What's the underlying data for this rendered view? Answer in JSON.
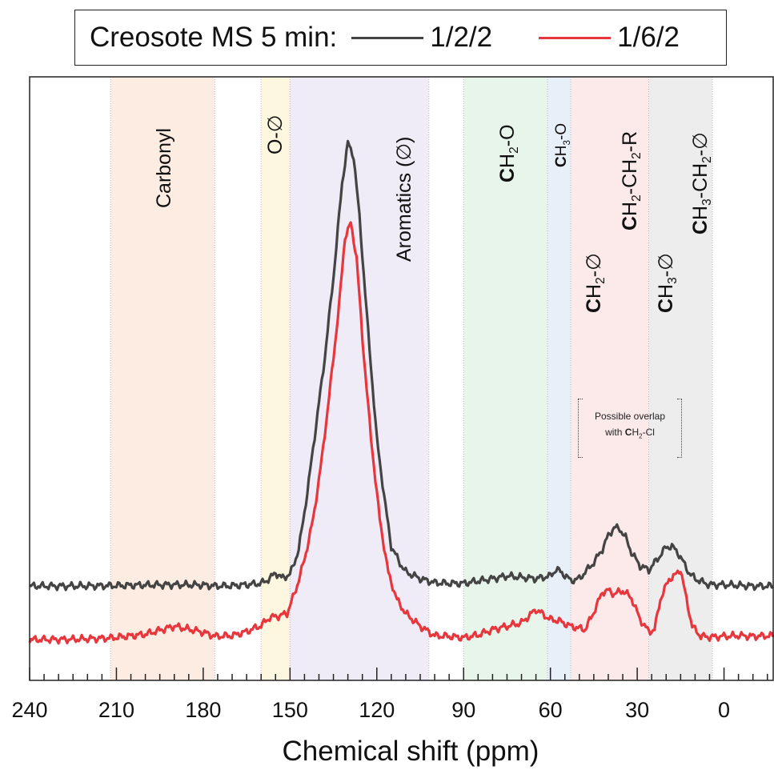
{
  "legend": {
    "title": "Creosote MS 5 min:",
    "items": [
      {
        "label": "1/2/2",
        "color": "#444444"
      },
      {
        "label": "1/6/2",
        "color": "#e8363d"
      }
    ]
  },
  "regions": [
    {
      "label": "Carbonyl",
      "from": 212,
      "to": 176,
      "color": "#fde9dc"
    },
    {
      "label": "O-∅",
      "from": 160,
      "to": 150,
      "color": "#fdf6da"
    },
    {
      "label": "Aromatics (∅)",
      "from": 150,
      "to": 102,
      "color": "#ece8f6"
    },
    {
      "label": "CH2-O",
      "from": 90,
      "to": 61,
      "color": "#e4f3e7"
    },
    {
      "label": "CH3-O",
      "from": 61,
      "to": 53,
      "color": "#e3ecf8"
    },
    {
      "label": "CH2-CH2-R / CH2-∅",
      "from": 53,
      "to": 26,
      "color": "#fce5e5"
    },
    {
      "label": "CH3-CH2-∅ / CH3-∅",
      "from": 26,
      "to": 4,
      "color": "#eaeaea"
    }
  ],
  "annotation": {
    "line1": "Possible overlap",
    "line2_prefix": "with ",
    "line2_bold": "C",
    "line2_rest": "H",
    "line2_sub": "2",
    "line2_end": "-Cl"
  },
  "chart_data": {
    "type": "line",
    "xlabel": "Chemical shift (ppm)",
    "ylabel": "",
    "xlim": [
      240,
      -17
    ],
    "x_reversed": true,
    "ticks": [
      240,
      210,
      180,
      150,
      120,
      90,
      60,
      30,
      0
    ],
    "tick_labels": [
      "240",
      "210",
      "180",
      "150",
      "120",
      "90",
      "60",
      "30",
      "0"
    ],
    "y_axis_values": "arbitrary intensity (no scale shown)",
    "series": [
      {
        "name": "1/2/2",
        "color": "#444444",
        "x": [
          240,
          225,
          212,
          200,
          190,
          180,
          176,
          170,
          165,
          160,
          157,
          155,
          153,
          150,
          147,
          144,
          141,
          138,
          135,
          132,
          130,
          128,
          126,
          123,
          120,
          117,
          115,
          112,
          110,
          105,
          100,
          95,
          90,
          80,
          75,
          70,
          65,
          60,
          58,
          56,
          53,
          50,
          45,
          42,
          40,
          38,
          36,
          34,
          32,
          29,
          26,
          23,
          20,
          18,
          16,
          14,
          12,
          10,
          7,
          5,
          0,
          -5,
          -10,
          -17
        ],
        "y": [
          0.1,
          0.1,
          0.15,
          0.25,
          0.3,
          0.25,
          0.1,
          0.15,
          0.3,
          0.5,
          1.2,
          2.1,
          1.3,
          1.8,
          5.5,
          14,
          24,
          34,
          46,
          60,
          66,
          64,
          55,
          38,
          22,
          12,
          6,
          3.5,
          2.2,
          1.2,
          0.6,
          0.5,
          0.5,
          1.2,
          1.6,
          1.4,
          1.2,
          1.6,
          2.6,
          2.1,
          0.9,
          1.2,
          3.6,
          5.6,
          7.6,
          8.8,
          8.6,
          7.3,
          5.1,
          3.1,
          2.5,
          4.1,
          5.9,
          6.0,
          5.1,
          3.6,
          2.0,
          1.2,
          0.6,
          0.3,
          0.3,
          0.2,
          0.1,
          0.1
        ]
      },
      {
        "name": "1/6/2",
        "color": "#e8363d",
        "x": [
          240,
          225,
          212,
          200,
          190,
          180,
          176,
          170,
          165,
          160,
          157,
          154,
          151,
          148,
          145,
          142,
          139,
          136,
          133,
          131,
          129,
          127,
          125,
          122,
          119,
          116,
          113,
          110,
          105,
          100,
          95,
          90,
          85,
          80,
          70,
          65,
          60,
          57,
          53,
          48,
          45,
          42,
          40,
          38,
          35,
          32,
          29,
          26,
          24,
          22,
          19,
          17,
          15,
          13,
          11,
          8,
          5,
          0,
          -5,
          -10,
          -17
        ],
        "y": [
          0.1,
          0.15,
          0.35,
          0.9,
          2.1,
          1.2,
          0.6,
          0.7,
          1.3,
          2.2,
          3.4,
          3.6,
          4.0,
          7.5,
          12,
          18,
          27,
          38,
          50,
          60,
          62,
          57,
          45,
          30,
          18,
          10,
          6,
          4,
          2.1,
          0.7,
          0.6,
          0.4,
          0.8,
          1.6,
          2.6,
          4.6,
          3.1,
          2.9,
          2.1,
          1.6,
          4.2,
          7.2,
          7.4,
          6.9,
          7.4,
          6.3,
          3.1,
          1.3,
          1.6,
          6.1,
          9.1,
          9.6,
          10.6,
          6.1,
          2.1,
          0.6,
          0.5,
          0.6,
          0.7,
          0.6,
          0.7
        ]
      }
    ]
  }
}
